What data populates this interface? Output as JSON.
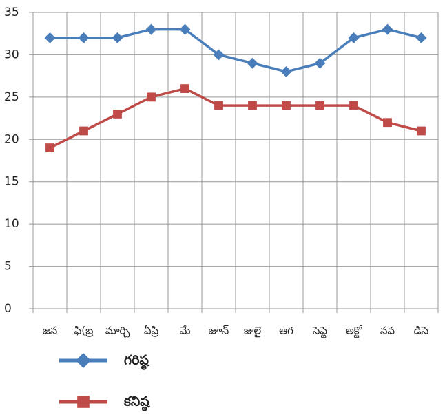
{
  "chart_data": {
    "type": "line",
    "categories": [
      "జన",
      "ఫి(బ్ర",
      "మార్చి",
      "ఏప్రి",
      "మే",
      "జూన్",
      "జులై",
      "ఆగ",
      "సెప్టె",
      "అక్టో",
      "నవ",
      "డిసె"
    ],
    "series": [
      {
        "name": "గరిష్ఠ",
        "color": "#4a7ebb",
        "marker": "diamond",
        "values": [
          32,
          32,
          32,
          33,
          33,
          30,
          29,
          28,
          29,
          32,
          33,
          32
        ]
      },
      {
        "name": "కనిష్ఠ",
        "color": "#be4b48",
        "marker": "square",
        "values": [
          19,
          21,
          23,
          25,
          26,
          24,
          24,
          24,
          24,
          24,
          22,
          21
        ]
      }
    ],
    "ylim": [
      0,
      35
    ],
    "yticks": [
      0,
      5,
      10,
      15,
      20,
      25,
      30,
      35
    ],
    "grid": true,
    "legend": "bottom"
  }
}
